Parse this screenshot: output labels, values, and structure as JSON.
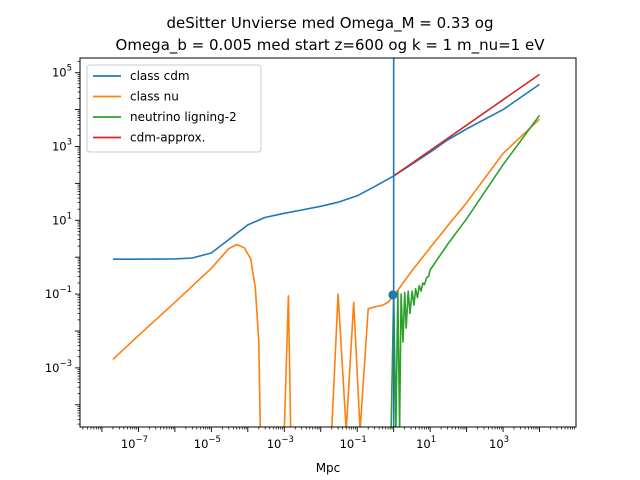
{
  "chart_data": {
    "type": "line",
    "title_lines": [
      "deSitter Unvierse med Omega_M = 0.33 og",
      "Omega_b = 0.005 med start z=600 og k = 1 m_nu=1 eV"
    ],
    "xlabel": "Mpc",
    "ylabel": "",
    "xscale": "log",
    "yscale": "log",
    "xlim": [
      2.5e-09,
      100000.0
    ],
    "ylim": [
      2.5e-05,
      250000.0
    ],
    "grid": false,
    "legend_position": "top-left",
    "x_ticks": [
      {
        "value": 1e-07,
        "base": "10",
        "exp": "−7"
      },
      {
        "value": 1e-05,
        "base": "10",
        "exp": "−5"
      },
      {
        "value": 0.001,
        "base": "10",
        "exp": "−3"
      },
      {
        "value": 0.1,
        "base": "10",
        "exp": "−1"
      },
      {
        "value": 10,
        "base": "10",
        "exp": "1"
      },
      {
        "value": 1000,
        "base": "10",
        "exp": "3"
      }
    ],
    "y_ticks": [
      {
        "value": 0.001,
        "base": "10",
        "exp": "−3"
      },
      {
        "value": 0.1,
        "base": "10",
        "exp": "−1"
      },
      {
        "value": 10,
        "base": "10",
        "exp": "1"
      },
      {
        "value": 1000,
        "base": "10",
        "exp": "3"
      },
      {
        "value": 100000.0,
        "base": "10",
        "exp": "5"
      }
    ],
    "series": [
      {
        "name": "class cdm",
        "color": "#1f77b4",
        "x": [
          2e-08,
          1e-07,
          1e-06,
          3e-06,
          1e-05,
          3e-05,
          0.0001,
          0.0003,
          0.001,
          0.003,
          0.01,
          0.03,
          0.1,
          0.3,
          1,
          3,
          10,
          30,
          100,
          1000,
          10000
        ],
        "y": [
          0.88,
          0.88,
          0.9,
          0.95,
          1.3,
          3.0,
          7.5,
          12,
          15.5,
          19,
          24,
          31,
          46,
          82,
          160,
          320,
          700,
          1500,
          3000,
          10000,
          48000
        ]
      },
      {
        "name": "class nu",
        "color": "#ff7f0e",
        "x": [
          2e-08,
          1e-07,
          1e-06,
          1e-05,
          3e-05,
          5e-05,
          8e-05,
          0.00012,
          0.00016,
          0.0002,
          0.00022,
          0.0003,
          0.0005,
          0.0007,
          0.001,
          0.0013,
          0.0015,
          0.002,
          0.003,
          0.005,
          0.008,
          0.012,
          0.02,
          0.03,
          0.05,
          0.08,
          0.12,
          0.2,
          0.3,
          0.5,
          0.7,
          1,
          3,
          10,
          30,
          100,
          1000,
          10000
        ],
        "y": [
          0.0017,
          0.0075,
          0.06,
          0.5,
          1.7,
          2.2,
          1.8,
          0.9,
          0.15,
          0.005,
          2e-05,
          2e-05,
          2e-05,
          2e-05,
          2e-05,
          0.09,
          2e-05,
          2e-05,
          2e-05,
          2e-05,
          2e-05,
          2e-05,
          2e-05,
          0.1,
          2e-05,
          0.06,
          2e-05,
          0.04,
          0.045,
          0.05,
          0.06,
          0.09,
          0.4,
          1.8,
          7,
          30,
          650,
          5500
        ]
      },
      {
        "name": "neutrino ligning-2",
        "color": "#2ca02c",
        "x": [
          0.85,
          1.0,
          1.15,
          1.3,
          1.45,
          1.6,
          1.8,
          2.0,
          2.2,
          2.5,
          2.8,
          3.2,
          3.6,
          4.0,
          4.5,
          5.0,
          5.6,
          6.3,
          7.0,
          8.0,
          9.0,
          10.0,
          30,
          100,
          1000,
          10000
        ],
        "y": [
          2e-05,
          0.11,
          2e-05,
          0.12,
          2e-05,
          0.1,
          0.005,
          0.11,
          0.012,
          0.12,
          0.03,
          0.12,
          0.05,
          0.14,
          0.08,
          0.17,
          0.12,
          0.2,
          0.18,
          0.28,
          0.3,
          0.45,
          2.2,
          11,
          320,
          7000
        ]
      },
      {
        "name": "cdm-approx.",
        "color": "#d62728",
        "x": [
          1,
          10000
        ],
        "y": [
          160,
          90000
        ]
      }
    ],
    "vertical_line": {
      "x": 1.0,
      "color": "#1f77b4"
    },
    "marker_points": [
      {
        "x": 0.95,
        "y": 0.095,
        "color": "#1f77b4"
      }
    ]
  }
}
